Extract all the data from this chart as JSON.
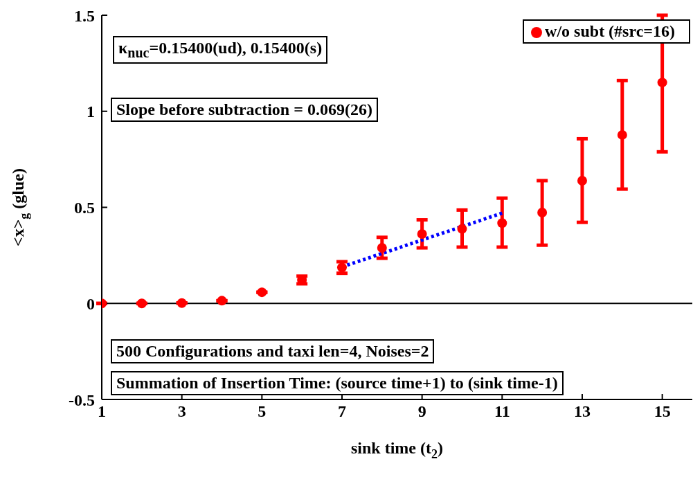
{
  "chart_data": {
    "type": "scatter",
    "xlabel": "sink time (t$_{2}$)",
    "ylabel": "<x>$_{g}$ (glue)",
    "x": [
      1,
      2,
      3,
      4,
      5,
      6,
      7,
      8,
      9,
      10,
      11,
      12,
      13,
      14,
      15
    ],
    "series": [
      {
        "name": "w/o subt (#src=16)",
        "color": "#ff0000",
        "marker": "circle",
        "values": [
          0,
          0,
          0.002,
          0.014,
          0.058,
          0.122,
          0.187,
          0.289,
          0.361,
          0.388,
          0.418,
          0.473,
          0.639,
          0.877,
          1.15
        ],
        "errors": [
          null,
          null,
          null,
          null,
          null,
          0.02,
          0.03,
          [
            0.235,
            0.344
          ],
          [
            0.289,
            0.435
          ],
          [
            0.293,
            0.486
          ],
          [
            0.293,
            0.548
          ],
          [
            0.303,
            0.639
          ],
          [
            0.422,
            0.857
          ],
          [
            0.595,
            1.16
          ],
          [
            0.789,
            1.5
          ]
        ]
      },
      {
        "type": "line",
        "color": "#0000ff",
        "line_style": "dotted",
        "x": [
          7,
          11
        ],
        "values": [
          0.19,
          0.47
        ]
      }
    ],
    "xlim": [
      1,
      15.75
    ],
    "xticks": [
      1,
      3,
      5,
      7,
      9,
      11,
      13,
      15
    ],
    "ylim": [
      -0.5,
      1.5
    ],
    "yticks": [
      -0.5,
      0,
      0.5,
      1,
      1.5
    ],
    "ref_lines": [
      {
        "axis": "y",
        "value": 0,
        "color": "#000000"
      }
    ],
    "grid": false,
    "legend": "top right",
    "annotations": [
      "κ$_{nuc}$=0.15400(ud), 0.15400(s)",
      "Slope before subtraction = 0.069(26)",
      "500 Configurations and taxi len=4, Noises=2",
      "Summation of Insertion Time: (source time+1) to (sink time-1)"
    ]
  }
}
